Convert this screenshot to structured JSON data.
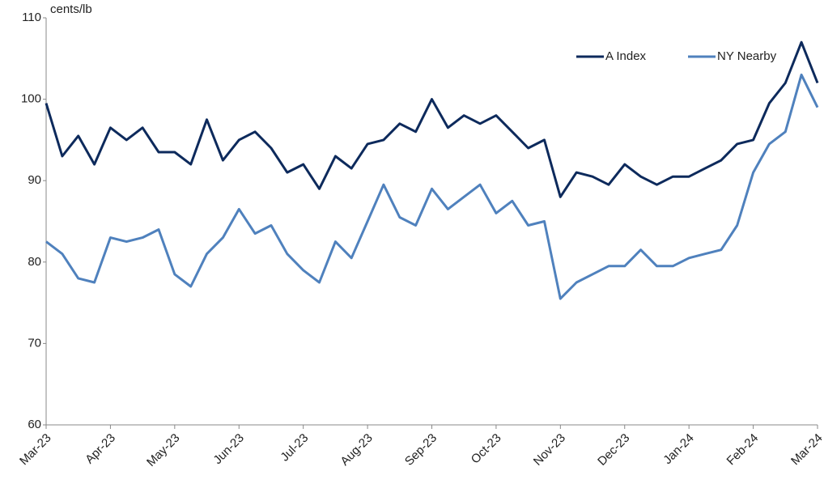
{
  "chart_data": {
    "type": "line",
    "y_label": "cents/lb",
    "categories": [
      "Mar-23",
      null,
      null,
      null,
      "Apr-23",
      null,
      null,
      null,
      "May-23",
      null,
      null,
      null,
      "Jun-23",
      null,
      null,
      null,
      "Jul-23",
      null,
      null,
      null,
      "Aug-23",
      null,
      null,
      null,
      "Sep-23",
      null,
      null,
      null,
      "Oct-23",
      null,
      null,
      null,
      "Nov-23",
      null,
      null,
      null,
      "Dec-23",
      null,
      null,
      null,
      "Jan-24",
      null,
      null,
      null,
      "Feb-24",
      null,
      null,
      null,
      "Mar-24"
    ],
    "series": [
      {
        "name": "A Index",
        "color": "#0d2a5c",
        "values": [
          99.5,
          93,
          95.5,
          92,
          96.5,
          95,
          96.5,
          93.5,
          93.5,
          92,
          97.5,
          92.5,
          95,
          96,
          94,
          91,
          92,
          89,
          93,
          91.5,
          94.5,
          95,
          97,
          96,
          100,
          96.5,
          98,
          97,
          98,
          96,
          94,
          95,
          88,
          91,
          90.5,
          89.5,
          92,
          90.5,
          89.5,
          90.5,
          90.5,
          91.5,
          92.5,
          94.5,
          95,
          99.5,
          102,
          107,
          102
        ]
      },
      {
        "name": "NY Nearby",
        "color": "#4f81bd",
        "values": [
          82.5,
          81,
          78,
          77.5,
          83,
          82.5,
          83,
          84,
          78.5,
          77,
          81,
          83,
          86.5,
          83.5,
          84.5,
          81,
          79,
          77.5,
          82.5,
          80.5,
          85,
          89.5,
          85.5,
          84.5,
          89,
          86.5,
          88,
          89.5,
          86,
          87.5,
          84.5,
          85,
          75.5,
          77.5,
          78.5,
          79.5,
          79.5,
          81.5,
          79.5,
          79.5,
          80.5,
          81,
          81.5,
          84.5,
          91,
          94.5,
          96,
          103,
          99
        ]
      }
    ],
    "ylim": [
      60,
      110
    ],
    "yticks": [
      60,
      70,
      80,
      90,
      100,
      110
    ],
    "grid": false,
    "legend": "top-right"
  }
}
